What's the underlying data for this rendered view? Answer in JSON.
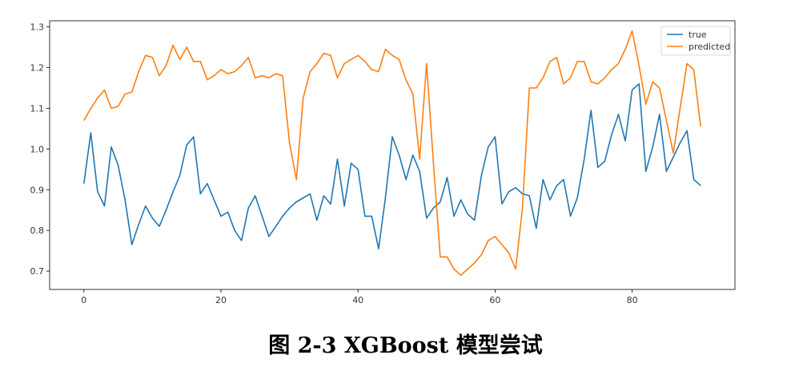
{
  "caption": "图 2-3 XGBoost 模型尝试",
  "chart_data": {
    "type": "line",
    "x_start": 0,
    "xlim": [
      -5,
      95
    ],
    "ylim": [
      0.655,
      1.315
    ],
    "xticks": [
      0,
      20,
      40,
      60,
      80
    ],
    "yticks": [
      0.7,
      0.8,
      0.9,
      1.0,
      1.1,
      1.2,
      1.3
    ],
    "ytick_labels": [
      "0.7",
      "0.8",
      "0.9",
      "1.0",
      "1.1",
      "1.2",
      "1.3"
    ],
    "legend_position": "top-right",
    "grid": false,
    "series": [
      {
        "name": "true",
        "color": "#1f77b4",
        "values": [
          0.915,
          1.04,
          0.895,
          0.86,
          1.005,
          0.96,
          0.875,
          0.765,
          0.815,
          0.86,
          0.83,
          0.81,
          0.85,
          0.895,
          0.935,
          1.01,
          1.03,
          0.89,
          0.915,
          0.875,
          0.835,
          0.845,
          0.8,
          0.775,
          0.855,
          0.885,
          0.835,
          0.785,
          0.81,
          0.835,
          0.855,
          0.87,
          0.88,
          0.89,
          0.825,
          0.885,
          0.865,
          0.975,
          0.86,
          0.965,
          0.95,
          0.835,
          0.835,
          0.755,
          0.88,
          1.03,
          0.985,
          0.925,
          0.985,
          0.945,
          0.83,
          0.855,
          0.87,
          0.93,
          0.835,
          0.875,
          0.84,
          0.825,
          0.935,
          1.005,
          1.03,
          0.865,
          0.895,
          0.905,
          0.89,
          0.885,
          0.805,
          0.925,
          0.875,
          0.91,
          0.925,
          0.835,
          0.88,
          0.975,
          1.095,
          0.955,
          0.97,
          1.035,
          1.085,
          1.02,
          1.145,
          1.16,
          0.945,
          1.005,
          1.085,
          0.945,
          0.98,
          1.015,
          1.045,
          0.925,
          0.91
        ]
      },
      {
        "name": "predicted",
        "color": "#ff7f0e",
        "values": [
          1.07,
          1.1,
          1.125,
          1.145,
          1.1,
          1.105,
          1.135,
          1.14,
          1.19,
          1.23,
          1.225,
          1.18,
          1.205,
          1.255,
          1.22,
          1.25,
          1.215,
          1.215,
          1.17,
          1.18,
          1.195,
          1.185,
          1.19,
          1.205,
          1.225,
          1.175,
          1.18,
          1.175,
          1.185,
          1.18,
          1.015,
          0.925,
          1.125,
          1.19,
          1.21,
          1.235,
          1.23,
          1.175,
          1.21,
          1.22,
          1.23,
          1.215,
          1.195,
          1.19,
          1.245,
          1.23,
          1.22,
          1.17,
          1.135,
          0.975,
          1.21,
          0.965,
          0.735,
          0.735,
          0.705,
          0.69,
          0.705,
          0.72,
          0.74,
          0.775,
          0.785,
          0.765,
          0.745,
          0.705,
          0.855,
          1.15,
          1.15,
          1.175,
          1.215,
          1.225,
          1.16,
          1.175,
          1.215,
          1.215,
          1.165,
          1.16,
          1.175,
          1.195,
          1.21,
          1.245,
          1.29,
          1.205,
          1.11,
          1.165,
          1.15,
          1.07,
          0.99,
          1.1,
          1.21,
          1.195,
          1.055
        ]
      }
    ]
  }
}
